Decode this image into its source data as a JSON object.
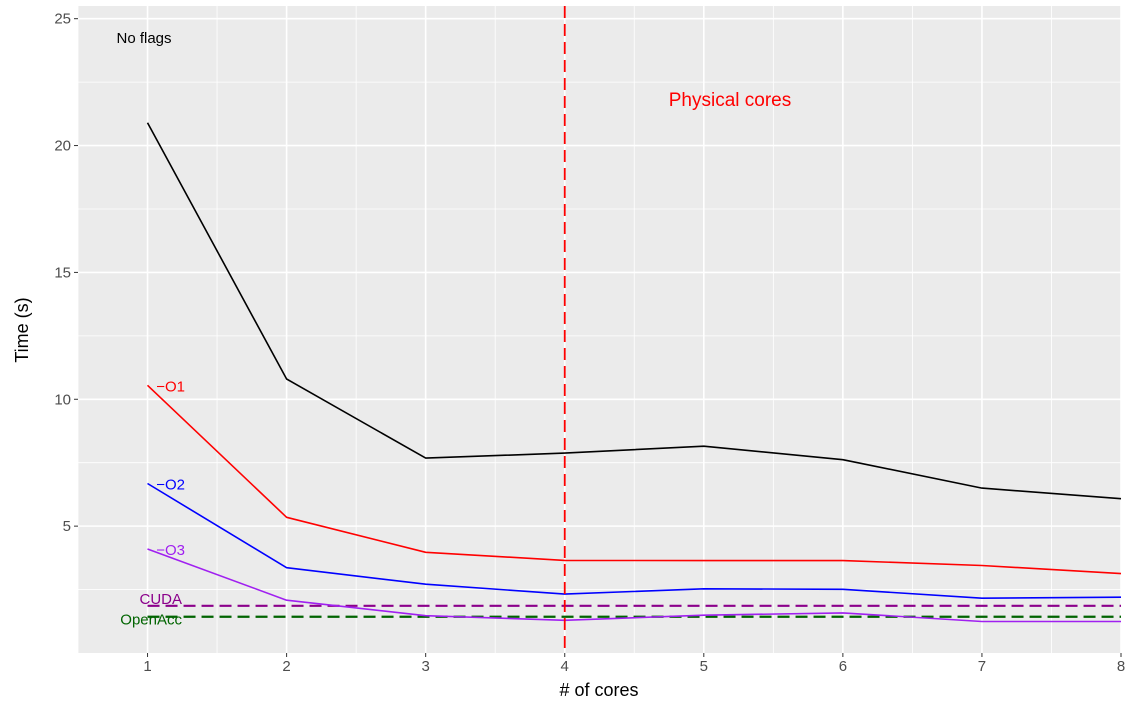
{
  "chart_data": {
    "type": "line",
    "xlabel": "# of cores",
    "ylabel": "Time (s)",
    "xlim": [
      0.5,
      8.0
    ],
    "ylim": [
      0.0,
      25.5
    ],
    "x_ticks": [
      1,
      2,
      3,
      4,
      5,
      6,
      7,
      8
    ],
    "y_ticks": [
      5,
      10,
      15,
      20,
      25
    ],
    "grid": true,
    "x": [
      1,
      2,
      3,
      4,
      5,
      6,
      7,
      8
    ],
    "series": [
      {
        "name": "No flags",
        "color": "#000000",
        "values": [
          20.9,
          10.8,
          7.68,
          7.88,
          8.15,
          7.62,
          6.5,
          6.08
        ]
      },
      {
        "name": "−O1",
        "color": "#ff0000",
        "values": [
          10.55,
          5.35,
          3.97,
          3.65,
          3.64,
          3.64,
          3.45,
          3.13
        ]
      },
      {
        "name": "−O2",
        "color": "#0000ff",
        "values": [
          6.68,
          3.36,
          2.71,
          2.32,
          2.53,
          2.51,
          2.16,
          2.2
        ]
      },
      {
        "name": "−O3",
        "color": "#a020f0",
        "values": [
          4.1,
          2.08,
          1.47,
          1.29,
          1.49,
          1.58,
          1.24,
          1.24
        ]
      }
    ],
    "reference_lines": [
      {
        "name": "CUDA",
        "color": "#8b008b",
        "y": 1.86,
        "style": "dashed"
      },
      {
        "name": "OpenAcc",
        "color": "#006400",
        "y": 1.43,
        "style": "dashed"
      }
    ],
    "vertical_line": {
      "label": "Physical cores",
      "color": "#ff0000",
      "x": 4,
      "style": "dashed"
    }
  }
}
